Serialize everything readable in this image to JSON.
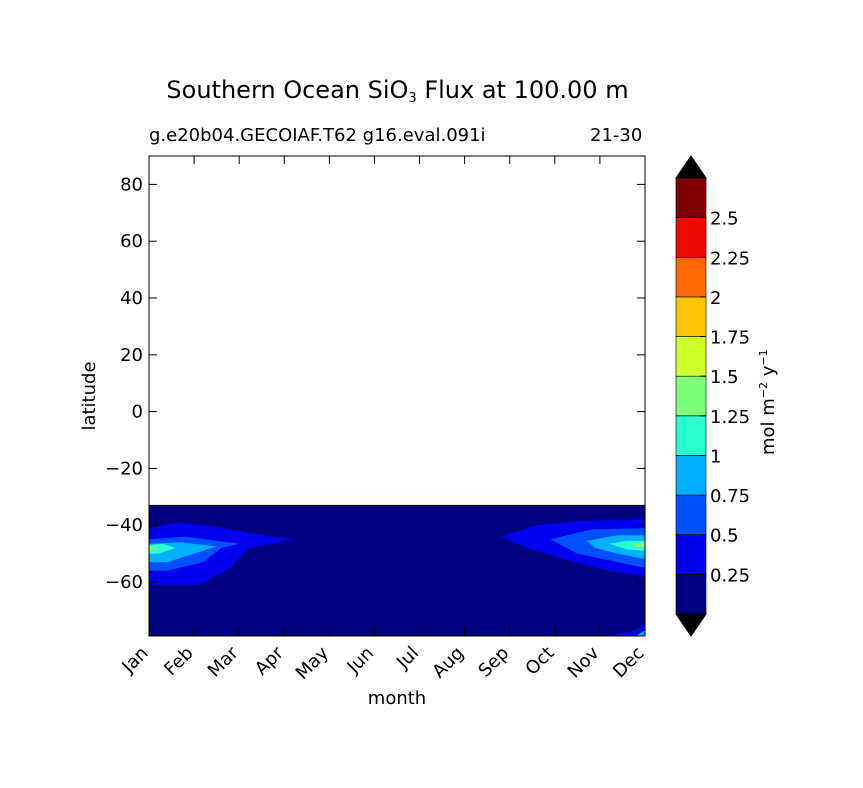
{
  "chart_data": {
    "type": "heatmap",
    "title_main": "Southern Ocean SiO",
    "title_sub": "3",
    "title_rest": " Flux at 100.00 m",
    "subtitle_left": "g.e20b04.GECOIAF.T62 g16.eval.091i",
    "subtitle_right": "21-30",
    "xlabel": "month",
    "ylabel": "latitude",
    "x_categories": [
      "Jan",
      "Feb",
      "Mar",
      "Apr",
      "May",
      "Jun",
      "Jul",
      "Aug",
      "Sep",
      "Oct",
      "Nov",
      "Dec"
    ],
    "xlim": [
      0,
      11
    ],
    "ylim": [
      -79,
      90
    ],
    "y_ticks": [
      80,
      60,
      40,
      20,
      0,
      -20,
      -40,
      -60
    ],
    "y_tick_labels": [
      "80",
      "60",
      "40",
      "20",
      "0",
      "−20",
      "−40",
      "−60"
    ],
    "data_lat_range": [
      -79,
      -33
    ],
    "colorbar": {
      "label_main": "mol m",
      "label_exp1": "−2",
      "label_mid": " y",
      "label_exp2": "−1",
      "levels": [
        0,
        0.25,
        0.5,
        0.75,
        1,
        1.25,
        1.5,
        1.75,
        2,
        2.25,
        2.5,
        2.75
      ],
      "tick_labels": [
        "0.25",
        "0.5",
        "0.75",
        "1",
        "1.25",
        "1.5",
        "1.75",
        "2",
        "2.25",
        "2.5"
      ],
      "colors": [
        "#000080",
        "#0000f0",
        "#0050ff",
        "#00b0ff",
        "#29ffce",
        "#7dff7a",
        "#ceff29",
        "#ffc400",
        "#ff6800",
        "#f10800",
        "#800000"
      ],
      "extend": "both",
      "under_color": "#000000",
      "over_color": "#000000"
    },
    "contours": [
      {
        "level": 0.25,
        "color": "#0000f0",
        "polygons": [
          [
            [
              0,
              -41
            ],
            [
              0.6,
              -39
            ],
            [
              1.5,
              -40.5
            ],
            [
              2.3,
              -43
            ],
            [
              3.2,
              -45
            ],
            [
              2.2,
              -48
            ],
            [
              1.8,
              -55
            ],
            [
              1.1,
              -61
            ],
            [
              0,
              -61
            ]
          ],
          [
            [
              7.8,
              -44
            ],
            [
              8.6,
              -40
            ],
            [
              9.5,
              -38.5
            ],
            [
              11,
              -38
            ],
            [
              11,
              -58
            ],
            [
              10.2,
              -56
            ],
            [
              9.2,
              -52
            ],
            [
              8.4,
              -48
            ]
          ]
        ]
      },
      {
        "level": 0.5,
        "color": "#0050ff",
        "polygons": [
          [
            [
              0,
              -45
            ],
            [
              0.8,
              -44
            ],
            [
              2,
              -46.5
            ],
            [
              1.6,
              -48
            ],
            [
              1.2,
              -53
            ],
            [
              0.4,
              -56
            ],
            [
              0,
              -56
            ]
          ],
          [
            [
              8.9,
              -45
            ],
            [
              9.8,
              -41.5
            ],
            [
              11,
              -41
            ],
            [
              11,
              -55
            ],
            [
              10.4,
              -53
            ],
            [
              9.5,
              -50
            ]
          ]
        ]
      },
      {
        "level": 0.75,
        "color": "#00b0ff",
        "polygons": [
          [
            [
              0,
              -46.5
            ],
            [
              0.7,
              -46
            ],
            [
              1.5,
              -47.5
            ],
            [
              1.0,
              -50
            ],
            [
              0.4,
              -53
            ],
            [
              0,
              -53
            ]
          ],
          [
            [
              9.7,
              -45.5
            ],
            [
              10.4,
              -43.5
            ],
            [
              11,
              -43.5
            ],
            [
              11,
              -52
            ],
            [
              10.4,
              -50
            ],
            [
              9.9,
              -48
            ]
          ]
        ]
      },
      {
        "level": 1.0,
        "color": "#29ffce",
        "polygons": [
          [
            [
              0,
              -47
            ],
            [
              0.3,
              -46.5
            ],
            [
              0.6,
              -48
            ],
            [
              0.2,
              -50
            ],
            [
              0,
              -50
            ]
          ],
          [
            [
              10.2,
              -46.5
            ],
            [
              10.6,
              -45.5
            ],
            [
              11,
              -45.5
            ],
            [
              11,
              -49
            ],
            [
              10.6,
              -48.5
            ]
          ]
        ]
      },
      {
        "level": 1.25,
        "color": "#7dff7a",
        "polygons": [
          [
            [
              0,
              -47.5
            ],
            [
              0.15,
              -47.5
            ],
            [
              0.15,
              -48.5
            ],
            [
              0,
              -48.5
            ]
          ],
          [
            [
              10.7,
              -46.5
            ],
            [
              11,
              -46
            ],
            [
              11,
              -48
            ],
            [
              10.8,
              -47.6
            ]
          ]
        ]
      },
      {
        "level": 0.25,
        "color": "#0000f0",
        "polygons": [
          [
            [
              10.2,
              -79
            ],
            [
              10.8,
              -77
            ],
            [
              11,
              -74
            ],
            [
              11,
              -79
            ]
          ]
        ]
      },
      {
        "level": 0.75,
        "color": "#00b0ff",
        "polygons": [
          [
            [
              10.8,
              -79
            ],
            [
              11,
              -77
            ],
            [
              11,
              -79
            ]
          ]
        ]
      }
    ]
  }
}
